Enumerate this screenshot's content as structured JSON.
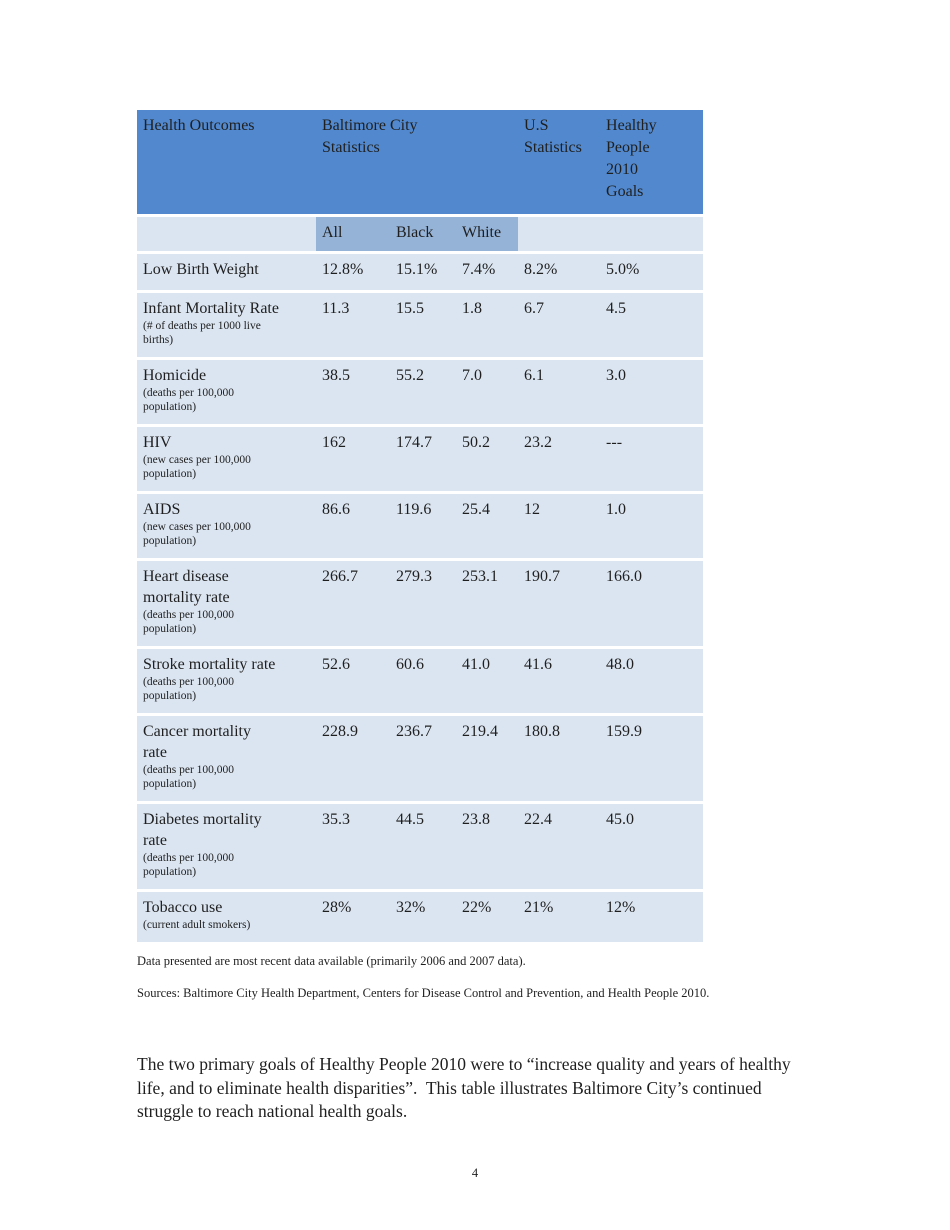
{
  "page": {
    "number": "4"
  },
  "table": {
    "colors": {
      "header": "#5289CE",
      "subheader": "#95B3D7",
      "row": "#DBE5F1"
    },
    "header": {
      "health_outcomes": "Health Outcomes",
      "baltimore_city": "Baltimore City\nStatistics",
      "us_statistics": "U.S\nStatistics",
      "hp2010_goals": "Healthy\nPeople\n2010\nGoals"
    },
    "subheader": [
      "All",
      "Black",
      "White"
    ],
    "rows": [
      {
        "outcome": "Low Birth Weight",
        "note": "",
        "all": "12.8%",
        "black": "15.1%",
        "white": "7.4%",
        "us": "8.2%",
        "goal": "5.0%"
      },
      {
        "outcome": "Infant Mortality Rate",
        "note": "(# of deaths per 1000 live\nbirths)",
        "all": "11.3",
        "black": "15.5",
        "white": "1.8",
        "us": "6.7",
        "goal": "4.5"
      },
      {
        "outcome": "Homicide",
        "note": "(deaths per 100,000\npopulation)",
        "all": "38.5",
        "black": "55.2",
        "white": "7.0",
        "us": "6.1",
        "goal": "3.0"
      },
      {
        "outcome": "HIV",
        "note": "(new cases per 100,000\npopulation)",
        "all": "162",
        "black": "174.7",
        "white": "50.2",
        "us": "23.2",
        "goal": "---"
      },
      {
        "outcome": "AIDS",
        "note": "(new cases per 100,000\npopulation)",
        "all": "86.6",
        "black": "119.6",
        "white": "25.4",
        "us": "12",
        "goal": "1.0"
      },
      {
        "outcome": "Heart disease\nmortality rate",
        "note": "(deaths per 100,000\npopulation)",
        "all": "266.7",
        "black": "279.3",
        "white": "253.1",
        "us": "190.7",
        "goal": "166.0"
      },
      {
        "outcome": "Stroke mortality rate",
        "note": "(deaths per 100,000\npopulation)",
        "all": "52.6",
        "black": "60.6",
        "white": "41.0",
        "us": "41.6",
        "goal": "48.0"
      },
      {
        "outcome": "Cancer mortality\nrate",
        "note": "(deaths per 100,000\npopulation)",
        "all": "228.9",
        "black": "236.7",
        "white": "219.4",
        "us": "180.8",
        "goal": "159.9"
      },
      {
        "outcome": "Diabetes mortality\nrate",
        "note": "(deaths per 100,000\npopulation)",
        "all": "35.3",
        "black": "44.5",
        "white": "23.8",
        "us": "22.4",
        "goal": "45.0"
      },
      {
        "outcome": "Tobacco use",
        "note": "(current adult smokers)",
        "all": "28%",
        "black": "32%",
        "white": "22%",
        "us": "21%",
        "goal": "12%"
      }
    ]
  },
  "notes": {
    "data_note": "Data presented are most recent data available (primarily 2006 and 2007 data).",
    "sources": "Sources: Baltimore City Health Department, Centers for Disease Control and Prevention, and Health People 2010."
  },
  "paragraph": "The two primary goals of Healthy People 2010 were to “increase quality and years of healthy life, and to eliminate health disparities”.  This table illustrates Baltimore City’s continued struggle to reach national health goals."
}
